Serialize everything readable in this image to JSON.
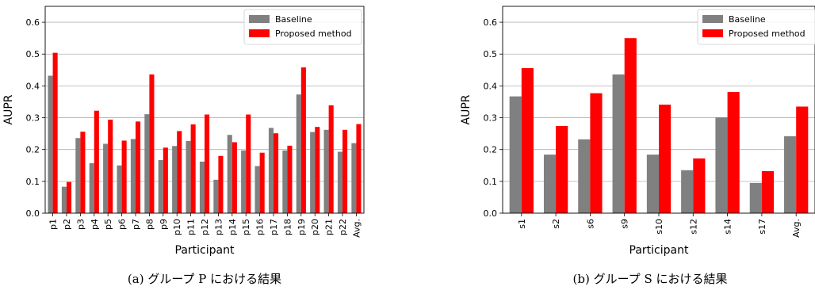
{
  "chart_data": [
    {
      "type": "bar",
      "caption": "(a) グループ P における結果",
      "xlabel": "Participant",
      "ylabel": "AUPR",
      "ylim": [
        0,
        0.65
      ],
      "yticks": [
        "0.0",
        "0.1",
        "0.2",
        "0.3",
        "0.4",
        "0.5",
        "0.6"
      ],
      "grid": "horizontal",
      "legend_position": "top-right",
      "categories": [
        "p1",
        "p2",
        "p3",
        "p4",
        "p5",
        "p6",
        "p7",
        "p8",
        "p9",
        "p10",
        "p11",
        "p12",
        "p13",
        "p14",
        "p15",
        "p16",
        "p17",
        "p18",
        "p19",
        "p20",
        "p21",
        "p22",
        "Avg."
      ],
      "series": [
        {
          "name": "Baseline",
          "color": "#808080",
          "values": [
            0.432,
            0.083,
            0.236,
            0.157,
            0.218,
            0.15,
            0.233,
            0.311,
            0.167,
            0.211,
            0.227,
            0.162,
            0.105,
            0.246,
            0.197,
            0.148,
            0.268,
            0.197,
            0.373,
            0.255,
            0.262,
            0.193,
            0.22
          ]
        },
        {
          "name": "Proposed method",
          "color": "#ff0000",
          "values": [
            0.504,
            0.098,
            0.256,
            0.322,
            0.294,
            0.228,
            0.288,
            0.436,
            0.206,
            0.258,
            0.279,
            0.31,
            0.18,
            0.223,
            0.31,
            0.19,
            0.251,
            0.212,
            0.458,
            0.271,
            0.339,
            0.262,
            0.28
          ]
        }
      ]
    },
    {
      "type": "bar",
      "caption": "(b) グループ S における結果",
      "xlabel": "Participant",
      "ylabel": "AUPR",
      "ylim": [
        0,
        0.65
      ],
      "yticks": [
        "0.0",
        "0.1",
        "0.2",
        "0.3",
        "0.4",
        "0.5",
        "0.6"
      ],
      "grid": "horizontal",
      "legend_position": "top-right",
      "categories": [
        "s1",
        "s2",
        "s6",
        "s9",
        "s10",
        "s12",
        "s14",
        "s17",
        "Avg."
      ],
      "series": [
        {
          "name": "Baseline",
          "color": "#808080",
          "values": [
            0.367,
            0.184,
            0.232,
            0.436,
            0.184,
            0.135,
            0.301,
            0.095,
            0.242
          ]
        },
        {
          "name": "Proposed method",
          "color": "#ff0000",
          "values": [
            0.456,
            0.274,
            0.377,
            0.55,
            0.341,
            0.172,
            0.381,
            0.132,
            0.335
          ]
        }
      ]
    }
  ]
}
